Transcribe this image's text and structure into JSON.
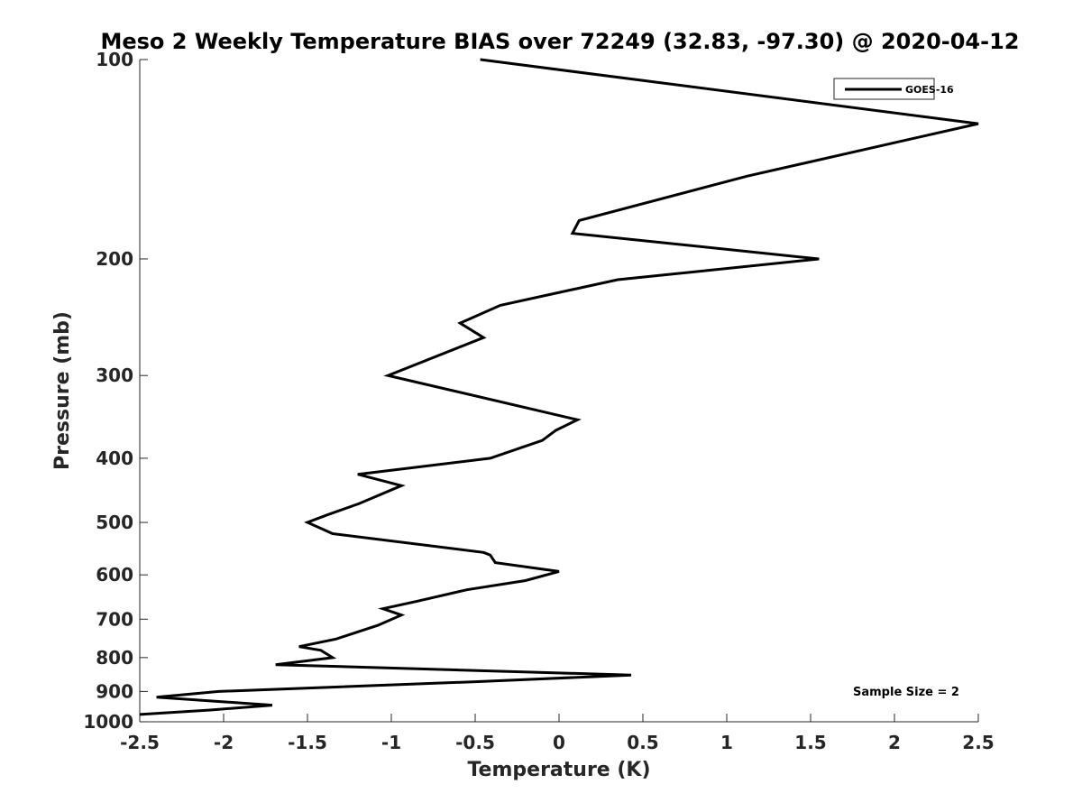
{
  "chart_data": {
    "type": "line",
    "title": "Meso 2 Weekly Temperature BIAS over 72249 (32.83, -97.30) @ 2020-04-12",
    "xlabel": "Temperature (K)",
    "ylabel": "Pressure (mb)",
    "xlim": [
      -2.5,
      2.5
    ],
    "ylim": [
      100,
      1000
    ],
    "y_scale": "log",
    "y_reversed": true,
    "x_ticks": [
      -2.5,
      -2,
      -1.5,
      -1,
      -0.5,
      0,
      0.5,
      1,
      1.5,
      2,
      2.5
    ],
    "x_tick_labels": [
      "-2.5",
      "-2",
      "-1.5",
      "-1",
      "-0.5",
      "0",
      "0.5",
      "1",
      "1.5",
      "2",
      "2.5"
    ],
    "y_ticks": [
      100,
      200,
      300,
      400,
      500,
      600,
      700,
      800,
      900,
      1000
    ],
    "y_tick_labels": [
      "100",
      "200",
      "300",
      "400",
      "500",
      "600",
      "700",
      "800",
      "900",
      "1000"
    ],
    "grid": false,
    "legend_position": "top-right",
    "annotation": "Sample Size = 2",
    "series": [
      {
        "name": "GOES-16",
        "color": "#000000",
        "points": [
          [
            -0.47,
            100
          ],
          [
            2.5,
            125
          ],
          [
            1.12,
            150
          ],
          [
            0.12,
            175
          ],
          [
            0.08,
            183
          ],
          [
            1.55,
            200
          ],
          [
            0.35,
            215
          ],
          [
            -0.35,
            235
          ],
          [
            -0.59,
            250
          ],
          [
            -0.45,
            263
          ],
          [
            -1.02,
            300
          ],
          [
            0.11,
            350
          ],
          [
            -0.02,
            363
          ],
          [
            -0.1,
            376
          ],
          [
            -0.41,
            400
          ],
          [
            -1.2,
            423
          ],
          [
            -0.94,
            440
          ],
          [
            -1.19,
            468
          ],
          [
            -1.38,
            487
          ],
          [
            -1.5,
            500
          ],
          [
            -1.35,
            520
          ],
          [
            -0.45,
            555
          ],
          [
            -0.41,
            560
          ],
          [
            -0.38,
            575
          ],
          [
            0,
            593
          ],
          [
            -0.2,
            612
          ],
          [
            -0.55,
            632
          ],
          [
            -0.85,
            658
          ],
          [
            -1.05,
            675
          ],
          [
            -0.94,
            690
          ],
          [
            -1.08,
            715
          ],
          [
            -1.33,
            750
          ],
          [
            -1.55,
            770
          ],
          [
            -1.42,
            780
          ],
          [
            -1.35,
            800
          ],
          [
            -1.69,
            820
          ],
          [
            0.43,
            850
          ],
          [
            -0.5,
            870
          ],
          [
            -2.03,
            900
          ],
          [
            -2.4,
            918
          ],
          [
            -1.71,
            944
          ],
          [
            -2.08,
            960
          ],
          [
            -2.5,
            975
          ]
        ]
      }
    ]
  }
}
